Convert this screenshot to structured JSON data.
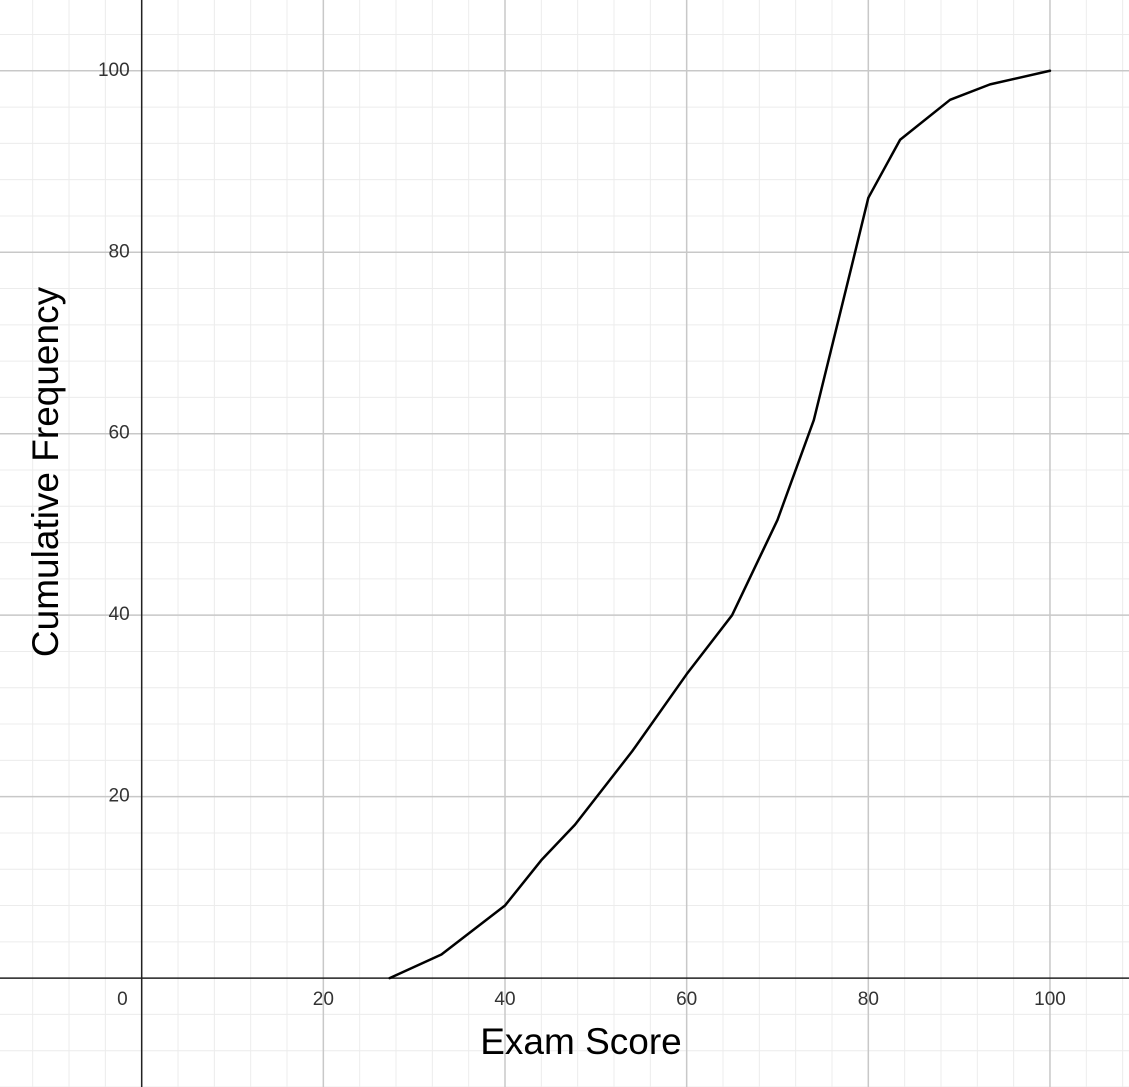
{
  "chart_data": {
    "type": "line",
    "x_label": "Exam Score",
    "y_label": "Cumulative Frequency",
    "x": [
      27.3,
      33,
      40,
      44,
      47.7,
      54,
      60,
      65,
      70,
      74,
      78.2,
      80,
      83.5,
      89,
      93.4,
      100
    ],
    "series": [
      {
        "color": "#000000",
        "values": [
          0,
          2.6,
          8,
          13,
          16.9,
          25,
          33.5,
          40,
          50.5,
          61.5,
          78.6,
          86,
          92.4,
          96.8,
          98.5,
          100
        ]
      }
    ],
    "xlim": [
      -15.6,
      108.7
    ],
    "ylim": [
      -12,
      107.8
    ],
    "xticks": [
      0,
      20,
      40,
      60,
      80,
      100
    ],
    "yticks": [
      20,
      40,
      60,
      80,
      100
    ],
    "grid": true
  }
}
